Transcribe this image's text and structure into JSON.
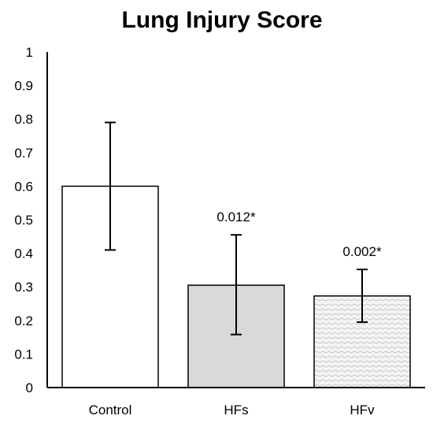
{
  "chart_data": {
    "type": "bar",
    "title": "Lung Injury Score",
    "xlabel": "",
    "ylabel": "",
    "ylim": [
      0,
      1
    ],
    "yticks": [
      "0",
      "0.1",
      "0.2",
      "0.3",
      "0.4",
      "0.5",
      "0.6",
      "0.7",
      "0.8",
      "0.9",
      "1"
    ],
    "categories": [
      "Control",
      "HFs",
      "HFv"
    ],
    "values": [
      0.6,
      0.305,
      0.273
    ],
    "error_low": [
      0.41,
      0.158,
      0.195
    ],
    "error_high": [
      0.79,
      0.455,
      0.352
    ],
    "annotations": [
      "",
      "0.012*",
      "0.002*"
    ],
    "fills": [
      "#ffffff",
      "#d9d9d9",
      "pattern"
    ],
    "grid": false,
    "legend": "none"
  }
}
